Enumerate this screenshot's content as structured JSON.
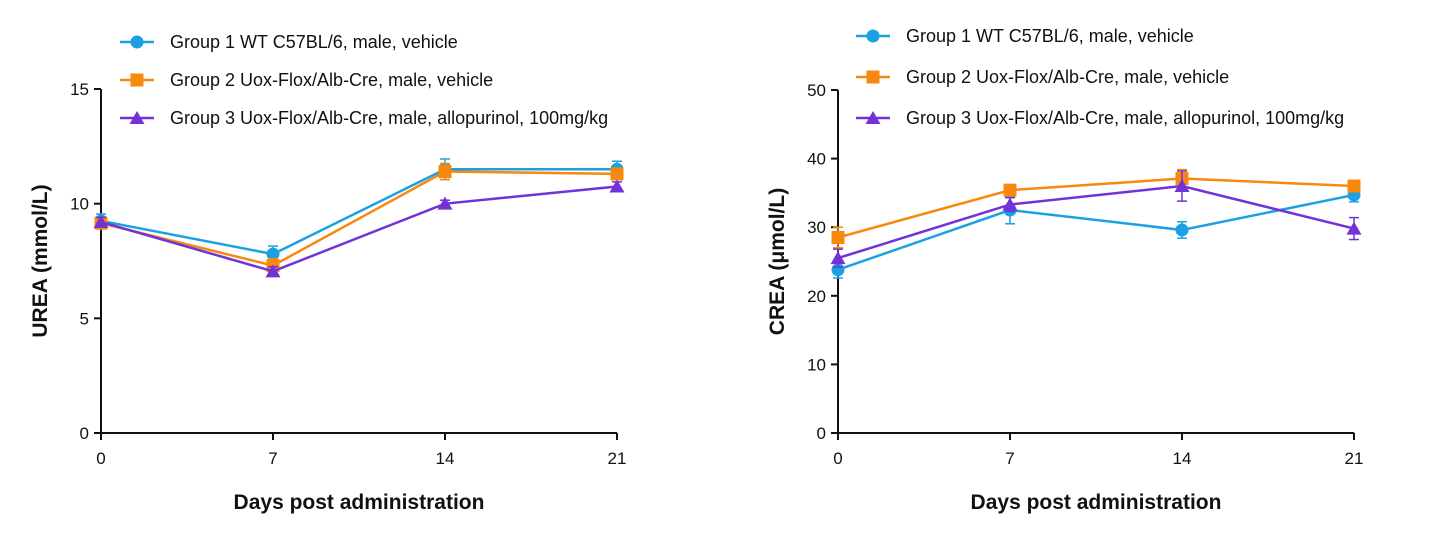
{
  "chart_data": [
    {
      "type": "line",
      "title": "",
      "xlabel": "Days post administration",
      "ylabel": "UREA (mmol/L)",
      "x": [
        0,
        7,
        14,
        21
      ],
      "xticks": [
        "0",
        "7",
        "14",
        "21"
      ],
      "ylim": [
        0,
        15
      ],
      "yticks": [
        "0",
        "5",
        "10",
        "15"
      ],
      "legend_position": "top-left",
      "series": [
        {
          "name": "Group 1 WT C57BL/6, male, vehicle",
          "color": "#1ba1e2",
          "marker": "circle",
          "values": [
            9.25,
            7.8,
            11.5,
            11.5
          ],
          "errors": [
            0.3,
            0.35,
            0.45,
            0.35
          ]
        },
        {
          "name": "Group 2 Uox-Flox/Alb-Cre, male, vehicle",
          "color": "#f7890f",
          "marker": "square",
          "values": [
            9.15,
            7.3,
            11.4,
            11.3
          ],
          "errors": [
            0.25,
            0.3,
            0.35,
            0.25
          ]
        },
        {
          "name": "Group 3 Uox-Flox/Alb-Cre, male, allopurinol, 100mg/kg",
          "color": "#7232d8",
          "marker": "triangle",
          "values": [
            9.2,
            7.05,
            10.0,
            10.75
          ],
          "errors": [
            0.2,
            0.2,
            0.15,
            0.2
          ]
        }
      ]
    },
    {
      "type": "line",
      "title": "",
      "xlabel": "Days post administration",
      "ylabel": "CREA (μmol/L)",
      "x": [
        0,
        7,
        14,
        21
      ],
      "xticks": [
        "0",
        "7",
        "14",
        "21"
      ],
      "ylim": [
        0,
        50
      ],
      "yticks": [
        "0",
        "10",
        "20",
        "30",
        "40",
        "50"
      ],
      "legend_position": "top-left",
      "series": [
        {
          "name": "Group 1 WT C57BL/6, male, vehicle",
          "color": "#1ba1e2",
          "marker": "circle",
          "values": [
            23.8,
            32.5,
            29.6,
            34.7
          ],
          "errors": [
            1.2,
            2.0,
            1.2,
            1.0
          ]
        },
        {
          "name": "Group 2 Uox-Flox/Alb-Cre, male, vehicle",
          "color": "#f7890f",
          "marker": "square",
          "values": [
            28.5,
            35.4,
            37.1,
            36.0
          ],
          "errors": [
            1.5,
            0.6,
            1.3,
            0.6
          ]
        },
        {
          "name": "Group 3 Uox-Flox/Alb-Cre, male, allopurinol, 100mg/kg",
          "color": "#7232d8",
          "marker": "triangle",
          "values": [
            25.5,
            33.3,
            36.0,
            29.8
          ],
          "errors": [
            1.3,
            1.0,
            2.2,
            1.6
          ]
        }
      ]
    }
  ]
}
